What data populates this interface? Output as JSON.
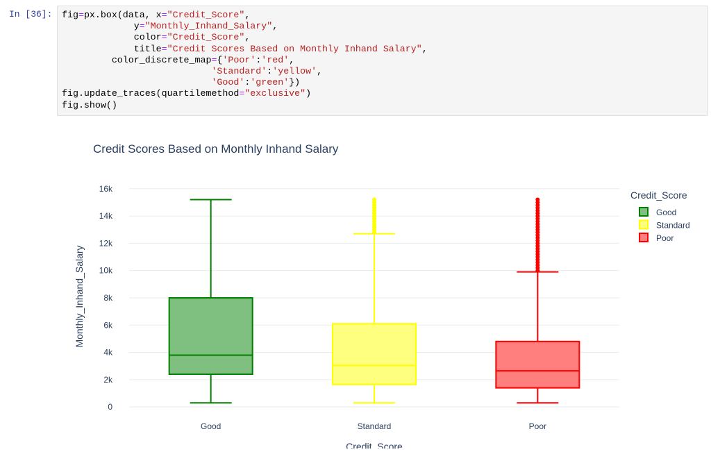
{
  "cell": {
    "prompt": "In [36]:",
    "code_lines": [
      [
        {
          "t": "fig"
        },
        {
          "t": "=",
          "c": "op"
        },
        {
          "t": "px.box(data, x"
        },
        {
          "t": "=",
          "c": "op"
        },
        {
          "t": "\"Credit_Score\"",
          "c": "str"
        },
        {
          "t": ","
        }
      ],
      [
        {
          "t": "             y"
        },
        {
          "t": "=",
          "c": "op"
        },
        {
          "t": "\"Monthly_Inhand_Salary\"",
          "c": "str"
        },
        {
          "t": ","
        }
      ],
      [
        {
          "t": "             color"
        },
        {
          "t": "=",
          "c": "op"
        },
        {
          "t": "\"Credit_Score\"",
          "c": "str"
        },
        {
          "t": ","
        }
      ],
      [
        {
          "t": "             title"
        },
        {
          "t": "=",
          "c": "op"
        },
        {
          "t": "\"Credit Scores Based on Monthly Inhand Salary\"",
          "c": "str"
        },
        {
          "t": ","
        }
      ],
      [
        {
          "t": "         color_discrete_map"
        },
        {
          "t": "=",
          "c": "op"
        },
        {
          "t": "{"
        },
        {
          "t": "'Poor'",
          "c": "str"
        },
        {
          "t": ":"
        },
        {
          "t": "'red'",
          "c": "str"
        },
        {
          "t": ","
        }
      ],
      [
        {
          "t": "                           "
        },
        {
          "t": "'Standard'",
          "c": "str"
        },
        {
          "t": ":"
        },
        {
          "t": "'yellow'",
          "c": "str"
        },
        {
          "t": ","
        }
      ],
      [
        {
          "t": "                           "
        },
        {
          "t": "'Good'",
          "c": "str"
        },
        {
          "t": ":"
        },
        {
          "t": "'green'",
          "c": "str"
        },
        {
          "t": "})"
        }
      ],
      [
        {
          "t": "fig.update_traces(quartilemethod"
        },
        {
          "t": "=",
          "c": "op"
        },
        {
          "t": "\"exclusive\"",
          "c": "str"
        },
        {
          "t": ")"
        }
      ],
      [
        {
          "t": "fig.show()"
        }
      ]
    ]
  },
  "chart_data": {
    "type": "box",
    "title": "Credit Scores Based on Monthly Inhand Salary",
    "xlabel": "Credit_Score",
    "ylabel": "Monthly_Inhand_Salary",
    "ylim": [
      -400,
      16600
    ],
    "yticks": [
      0,
      2000,
      4000,
      6000,
      8000,
      10000,
      12000,
      14000,
      16000
    ],
    "ytick_labels": [
      "0",
      "2k",
      "4k",
      "6k",
      "8k",
      "10k",
      "12k",
      "14k",
      "16k"
    ],
    "grid": true,
    "legend_title": "Credit_Score",
    "legend_position": "right",
    "series": [
      {
        "name": "Good",
        "color": "#008000",
        "fill": "#7fbf7f",
        "min": 300,
        "q1": 2400,
        "median": 3800,
        "q3": 8000,
        "max": 15200,
        "outliers": []
      },
      {
        "name": "Standard",
        "color": "#ffff00",
        "fill": "#ffff7f",
        "min": 300,
        "q1": 1650,
        "median": 3050,
        "q3": 6100,
        "max": 12700,
        "outliers": [
          12800,
          13000,
          13200,
          13400,
          13600,
          13800,
          14000,
          14200,
          14400,
          14600,
          14800,
          15000,
          15200
        ]
      },
      {
        "name": "Poor",
        "color": "#ff0000",
        "fill": "#ff7f7f",
        "min": 300,
        "q1": 1400,
        "median": 2650,
        "q3": 4800,
        "max": 9900,
        "outliers": [
          10000,
          10200,
          10400,
          10600,
          10800,
          11000,
          11200,
          11400,
          11600,
          11800,
          12000,
          12200,
          12400,
          12600,
          12800,
          13000,
          13200,
          13400,
          13600,
          13800,
          14000,
          14200,
          14400,
          14600,
          14800,
          15000,
          15200
        ]
      }
    ]
  }
}
